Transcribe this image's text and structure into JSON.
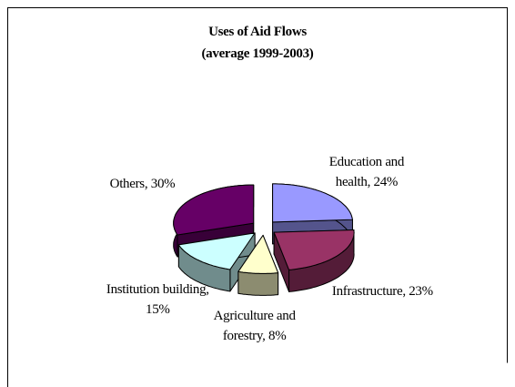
{
  "chart_data": {
    "type": "pie",
    "title": "Uses of Aid Flows",
    "subtitle": "(average 1999-2003)",
    "values": [
      24,
      23,
      8,
      15,
      30
    ],
    "value_labels": [
      "Education and health, 24%",
      "Infrastructure, 23%",
      "Agriculture and forestry, 8%",
      "Institution building, 15%",
      "Others, 30%"
    ],
    "colors": [
      "#9999ff",
      "#993366",
      "#ffffcc",
      "#ccffff",
      "#660066"
    ]
  }
}
